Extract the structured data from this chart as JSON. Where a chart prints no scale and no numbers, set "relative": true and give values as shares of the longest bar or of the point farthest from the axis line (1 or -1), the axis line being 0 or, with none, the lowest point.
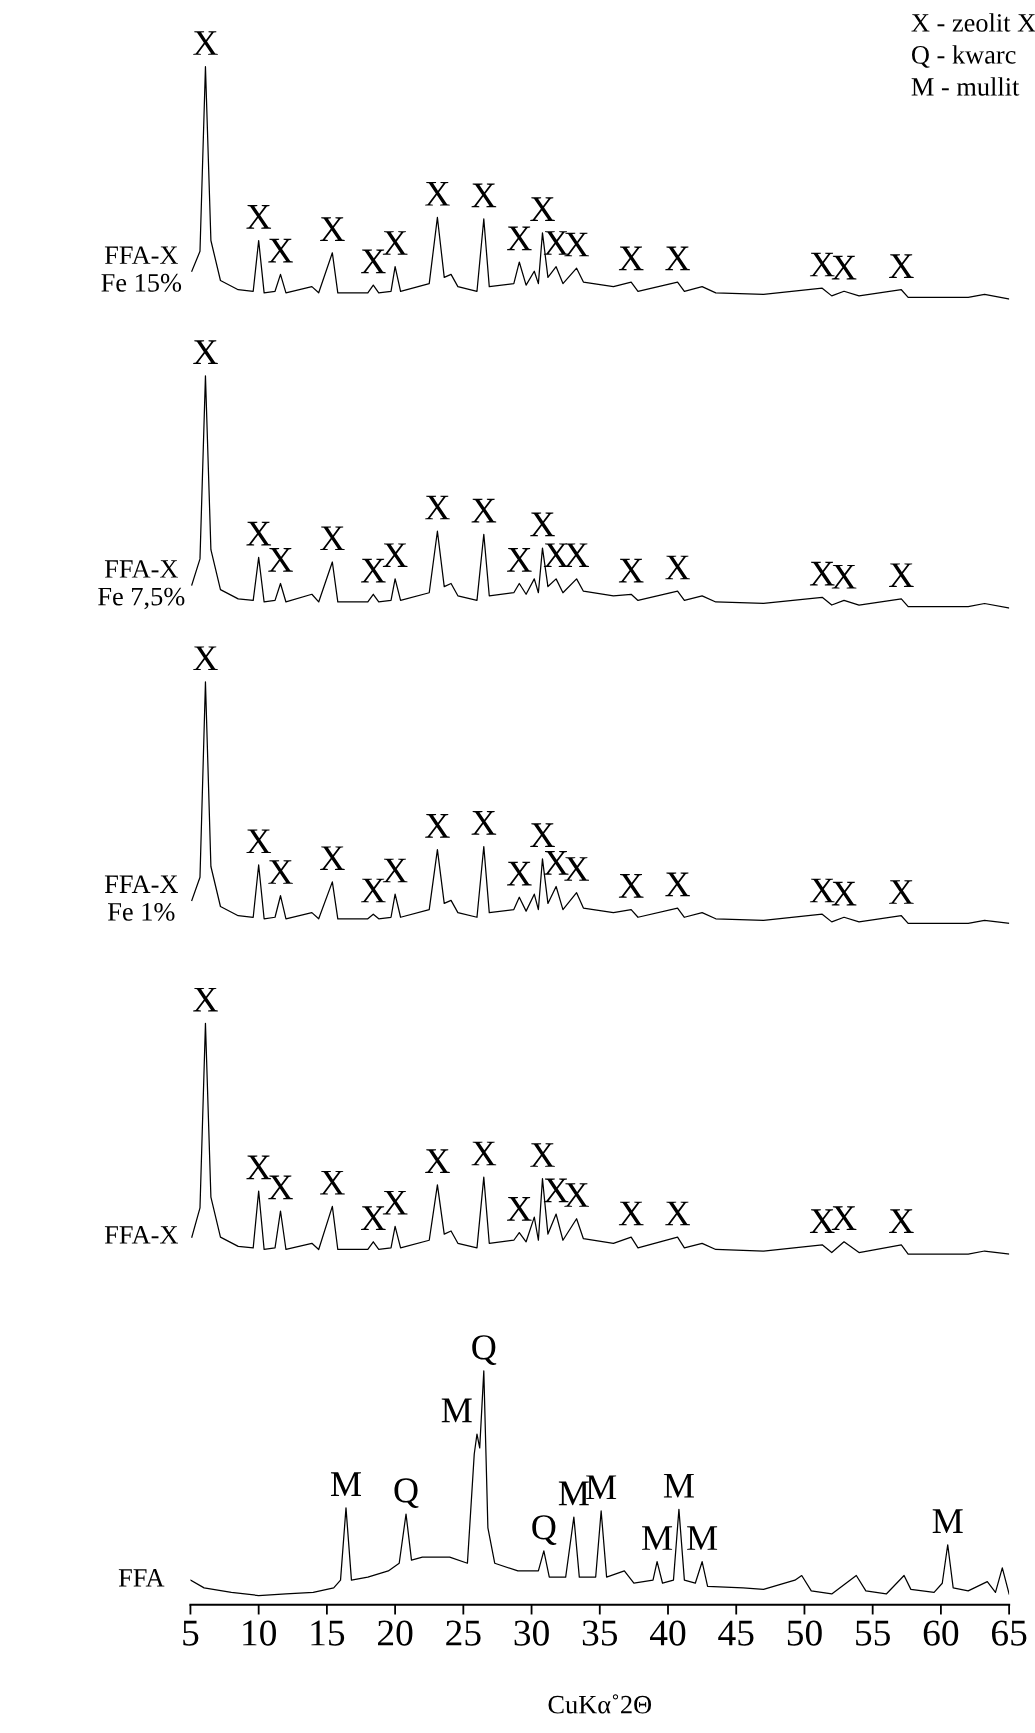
{
  "chart_data": {
    "type": "line",
    "relative": true,
    "xlabel": "CuKα˚2Θ",
    "xlim": [
      5,
      65
    ],
    "xticks": [
      5,
      10,
      15,
      20,
      25,
      30,
      35,
      40,
      45,
      50,
      55,
      60,
      65
    ],
    "tick_labels": "x",
    "series": [
      {
        "name": "FFA-X\nFe 15%",
        "color": "#000000",
        "x": [
          5.1,
          5.7,
          6.1,
          6.5,
          7.2,
          8.5,
          9.6,
          10.0,
          10.4,
          11.2,
          11.6,
          12.0,
          13.9,
          14.4,
          15.4,
          15.8,
          18.0,
          18.4,
          18.8,
          19.7,
          20.0,
          20.4,
          22.5,
          23.1,
          23.6,
          24.1,
          24.6,
          26.0,
          26.5,
          26.9,
          28.7,
          29.1,
          29.6,
          30.2,
          30.5,
          30.8,
          31.2,
          31.8,
          32.3,
          33.3,
          33.8,
          36.0,
          37.3,
          37.8,
          40.7,
          41.2,
          42.5,
          43.5,
          47.0,
          51.3,
          52.0,
          52.9,
          54.0,
          57.1,
          57.6,
          62.0,
          63.2,
          65.0
        ],
        "values": [
          0.867,
          0.88,
          1.0,
          0.887,
          0.861,
          0.855,
          0.854,
          0.887,
          0.853,
          0.854,
          0.865,
          0.853,
          0.857,
          0.853,
          0.879,
          0.853,
          0.853,
          0.858,
          0.853,
          0.854,
          0.87,
          0.854,
          0.859,
          0.902,
          0.863,
          0.865,
          0.857,
          0.854,
          0.901,
          0.857,
          0.859,
          0.873,
          0.858,
          0.867,
          0.859,
          0.892,
          0.863,
          0.87,
          0.859,
          0.869,
          0.86,
          0.857,
          0.86,
          0.854,
          0.86,
          0.854,
          0.857,
          0.853,
          0.852,
          0.856,
          0.851,
          0.854,
          0.851,
          0.855,
          0.85,
          0.85,
          0.852,
          0.849
        ]
      },
      {
        "name": "FFA-X\nFe 7,5%",
        "color": "#000000",
        "x": [
          5.1,
          5.7,
          6.1,
          6.5,
          7.2,
          8.5,
          9.6,
          10.0,
          10.4,
          11.2,
          11.6,
          12.0,
          13.9,
          14.4,
          15.4,
          15.8,
          18.0,
          18.4,
          18.8,
          19.7,
          20.0,
          20.4,
          22.5,
          23.1,
          23.6,
          24.1,
          24.6,
          26.0,
          26.5,
          26.9,
          28.7,
          29.1,
          29.6,
          30.2,
          30.5,
          30.8,
          31.2,
          31.8,
          32.3,
          33.3,
          33.8,
          36.0,
          37.3,
          37.8,
          40.7,
          41.2,
          42.5,
          43.5,
          47.0,
          51.3,
          52.0,
          52.9,
          54.0,
          57.1,
          57.6,
          62.0,
          63.2,
          65.0
        ],
        "values": [
          0.663,
          0.68,
          0.799,
          0.686,
          0.66,
          0.654,
          0.653,
          0.681,
          0.652,
          0.653,
          0.664,
          0.652,
          0.657,
          0.652,
          0.678,
          0.652,
          0.652,
          0.657,
          0.652,
          0.653,
          0.667,
          0.653,
          0.658,
          0.698,
          0.662,
          0.664,
          0.656,
          0.653,
          0.696,
          0.656,
          0.658,
          0.664,
          0.657,
          0.667,
          0.658,
          0.687,
          0.662,
          0.667,
          0.658,
          0.667,
          0.659,
          0.656,
          0.657,
          0.653,
          0.659,
          0.653,
          0.656,
          0.652,
          0.651,
          0.655,
          0.65,
          0.653,
          0.65,
          0.654,
          0.649,
          0.649,
          0.651,
          0.648
        ]
      },
      {
        "name": "FFA-X\nFe 1%",
        "color": "#000000",
        "x": [
          5.1,
          5.7,
          6.1,
          6.5,
          7.2,
          8.5,
          9.6,
          10.0,
          10.4,
          11.2,
          11.6,
          12.0,
          13.9,
          14.4,
          15.4,
          15.8,
          18.0,
          18.4,
          18.8,
          19.7,
          20.0,
          20.4,
          22.5,
          23.1,
          23.6,
          24.1,
          24.6,
          26.0,
          26.5,
          26.9,
          28.7,
          29.1,
          29.6,
          30.2,
          30.5,
          30.8,
          31.2,
          31.8,
          32.3,
          33.3,
          33.8,
          36.0,
          37.3,
          37.8,
          40.7,
          41.2,
          42.5,
          43.5,
          47.0,
          51.3,
          52.0,
          52.9,
          54.0,
          57.1,
          57.6,
          62.0,
          63.2,
          65.0
        ],
        "values": [
          0.458,
          0.473,
          0.6,
          0.48,
          0.454,
          0.448,
          0.447,
          0.481,
          0.446,
          0.447,
          0.461,
          0.446,
          0.45,
          0.446,
          0.47,
          0.446,
          0.446,
          0.449,
          0.446,
          0.447,
          0.462,
          0.447,
          0.452,
          0.491,
          0.456,
          0.458,
          0.45,
          0.447,
          0.493,
          0.45,
          0.452,
          0.46,
          0.451,
          0.462,
          0.452,
          0.485,
          0.456,
          0.467,
          0.452,
          0.463,
          0.453,
          0.45,
          0.452,
          0.447,
          0.453,
          0.447,
          0.45,
          0.446,
          0.445,
          0.449,
          0.444,
          0.447,
          0.444,
          0.448,
          0.443,
          0.443,
          0.445,
          0.443
        ]
      },
      {
        "name": "FFA-X",
        "color": "#000000",
        "x": [
          5.1,
          5.7,
          6.1,
          6.5,
          7.2,
          8.5,
          9.6,
          10.0,
          10.4,
          11.2,
          11.6,
          12.0,
          13.9,
          14.4,
          15.4,
          15.8,
          18.0,
          18.4,
          18.8,
          19.7,
          20.0,
          20.4,
          22.5,
          23.1,
          23.6,
          24.1,
          24.6,
          26.0,
          26.5,
          26.9,
          28.7,
          29.1,
          29.6,
          30.2,
          30.5,
          30.8,
          31.2,
          31.8,
          32.3,
          33.3,
          33.8,
          36.0,
          37.3,
          37.8,
          40.7,
          41.2,
          42.5,
          43.5,
          47.0,
          51.3,
          52.0,
          52.9,
          54.0,
          57.1,
          57.6,
          62.0,
          63.2,
          65.0
        ],
        "values": [
          0.239,
          0.258,
          0.378,
          0.265,
          0.239,
          0.233,
          0.232,
          0.269,
          0.231,
          0.232,
          0.256,
          0.231,
          0.235,
          0.231,
          0.259,
          0.231,
          0.231,
          0.236,
          0.231,
          0.232,
          0.246,
          0.232,
          0.237,
          0.273,
          0.241,
          0.243,
          0.235,
          0.232,
          0.278,
          0.235,
          0.237,
          0.242,
          0.236,
          0.252,
          0.237,
          0.277,
          0.241,
          0.254,
          0.237,
          0.251,
          0.238,
          0.235,
          0.239,
          0.232,
          0.239,
          0.232,
          0.235,
          0.231,
          0.23,
          0.234,
          0.229,
          0.236,
          0.229,
          0.234,
          0.228,
          0.228,
          0.23,
          0.228
        ]
      },
      {
        "name": "FFA",
        "color": "#000000",
        "x": [
          5.0,
          6.0,
          8.0,
          10.0,
          12.0,
          14.0,
          15.5,
          16.0,
          16.4,
          16.8,
          18.0,
          19.5,
          20.3,
          20.8,
          21.2,
          22.0,
          24.0,
          25.3,
          25.8,
          26.0,
          26.2,
          26.5,
          26.8,
          27.3,
          29.0,
          30.5,
          30.9,
          31.3,
          32.5,
          33.1,
          33.5,
          34.7,
          35.1,
          35.5,
          36.8,
          37.5,
          38.9,
          39.2,
          39.6,
          40.4,
          40.8,
          41.2,
          42.0,
          42.5,
          42.9,
          45.5,
          47.0,
          49.3,
          49.8,
          50.5,
          52.0,
          53.8,
          54.5,
          56.0,
          57.3,
          57.8,
          59.5,
          60.1,
          60.5,
          60.9,
          62.0,
          63.4,
          64.0,
          64.5,
          65.0
        ],
        "values": [
          0.016,
          0.011,
          0.008,
          0.006,
          0.007,
          0.008,
          0.011,
          0.016,
          0.063,
          0.016,
          0.018,
          0.022,
          0.027,
          0.059,
          0.029,
          0.031,
          0.031,
          0.027,
          0.098,
          0.111,
          0.102,
          0.152,
          0.05,
          0.027,
          0.022,
          0.022,
          0.035,
          0.018,
          0.018,
          0.057,
          0.018,
          0.018,
          0.061,
          0.018,
          0.022,
          0.014,
          0.016,
          0.028,
          0.014,
          0.016,
          0.062,
          0.016,
          0.014,
          0.028,
          0.012,
          0.011,
          0.01,
          0.016,
          0.019,
          0.009,
          0.007,
          0.019,
          0.009,
          0.007,
          0.019,
          0.01,
          0.008,
          0.014,
          0.039,
          0.011,
          0.009,
          0.015,
          0.008,
          0.024,
          0.007
        ]
      }
    ],
    "annotations": [
      "X - zeolit X",
      "Q - kwarc",
      "M - mullit",
      {
        "text": "X",
        "x": 6.1,
        "y": 1.0
      },
      {
        "text": "X",
        "x": 10.0,
        "y": 0.887
      },
      {
        "text": "X",
        "x": 11.6,
        "y": 0.865
      },
      {
        "text": "X",
        "x": 15.4,
        "y": 0.879
      },
      {
        "text": "X",
        "x": 18.4,
        "y": 0.858
      },
      {
        "text": "X",
        "x": 20.0,
        "y": 0.87
      },
      {
        "text": "X",
        "x": 23.1,
        "y": 0.902
      },
      {
        "text": "X",
        "x": 26.5,
        "y": 0.901
      },
      {
        "text": "X",
        "x": 29.1,
        "y": 0.873
      },
      {
        "text": "X",
        "x": 30.8,
        "y": 0.892
      },
      {
        "text": "X",
        "x": 31.8,
        "y": 0.87
      },
      {
        "text": "X",
        "x": 33.3,
        "y": 0.869
      },
      {
        "text": "X",
        "x": 37.3,
        "y": 0.86
      },
      {
        "text": "X",
        "x": 40.7,
        "y": 0.86
      },
      {
        "text": "X",
        "x": 51.3,
        "y": 0.856
      },
      {
        "text": "X",
        "x": 52.9,
        "y": 0.854
      },
      {
        "text": "X",
        "x": 57.1,
        "y": 0.855
      },
      {
        "text": "X",
        "x": 6.1,
        "y": 0.799
      },
      {
        "text": "X",
        "x": 10.0,
        "y": 0.681
      },
      {
        "text": "X",
        "x": 11.6,
        "y": 0.664
      },
      {
        "text": "X",
        "x": 15.4,
        "y": 0.678
      },
      {
        "text": "X",
        "x": 18.4,
        "y": 0.657
      },
      {
        "text": "X",
        "x": 20.0,
        "y": 0.667
      },
      {
        "text": "X",
        "x": 23.1,
        "y": 0.698
      },
      {
        "text": "X",
        "x": 26.5,
        "y": 0.696
      },
      {
        "text": "X",
        "x": 29.1,
        "y": 0.664
      },
      {
        "text": "X",
        "x": 30.8,
        "y": 0.687
      },
      {
        "text": "X",
        "x": 31.8,
        "y": 0.667
      },
      {
        "text": "X",
        "x": 33.3,
        "y": 0.667
      },
      {
        "text": "X",
        "x": 37.3,
        "y": 0.657
      },
      {
        "text": "X",
        "x": 40.7,
        "y": 0.659
      },
      {
        "text": "X",
        "x": 51.3,
        "y": 0.655
      },
      {
        "text": "X",
        "x": 52.9,
        "y": 0.653
      },
      {
        "text": "X",
        "x": 57.1,
        "y": 0.654
      },
      {
        "text": "X",
        "x": 6.1,
        "y": 0.6
      },
      {
        "text": "X",
        "x": 10.0,
        "y": 0.481
      },
      {
        "text": "X",
        "x": 11.6,
        "y": 0.461
      },
      {
        "text": "X",
        "x": 15.4,
        "y": 0.47
      },
      {
        "text": "X",
        "x": 18.4,
        "y": 0.449
      },
      {
        "text": "X",
        "x": 20.0,
        "y": 0.462
      },
      {
        "text": "X",
        "x": 23.1,
        "y": 0.491
      },
      {
        "text": "X",
        "x": 26.5,
        "y": 0.493
      },
      {
        "text": "X",
        "x": 29.1,
        "y": 0.46
      },
      {
        "text": "X",
        "x": 30.8,
        "y": 0.485
      },
      {
        "text": "X",
        "x": 31.8,
        "y": 0.467
      },
      {
        "text": "X",
        "x": 33.3,
        "y": 0.463
      },
      {
        "text": "X",
        "x": 37.3,
        "y": 0.452
      },
      {
        "text": "X",
        "x": 40.7,
        "y": 0.453
      },
      {
        "text": "X",
        "x": 51.3,
        "y": 0.449
      },
      {
        "text": "X",
        "x": 52.9,
        "y": 0.447
      },
      {
        "text": "X",
        "x": 57.1,
        "y": 0.448
      },
      {
        "text": "X",
        "x": 6.1,
        "y": 0.378
      },
      {
        "text": "X",
        "x": 10.0,
        "y": 0.269
      },
      {
        "text": "X",
        "x": 11.6,
        "y": 0.256
      },
      {
        "text": "X",
        "x": 15.4,
        "y": 0.259
      },
      {
        "text": "X",
        "x": 18.4,
        "y": 0.236
      },
      {
        "text": "X",
        "x": 20.0,
        "y": 0.246
      },
      {
        "text": "X",
        "x": 23.1,
        "y": 0.273
      },
      {
        "text": "X",
        "x": 26.5,
        "y": 0.278
      },
      {
        "text": "X",
        "x": 29.1,
        "y": 0.242
      },
      {
        "text": "X",
        "x": 30.8,
        "y": 0.277
      },
      {
        "text": "X",
        "x": 31.8,
        "y": 0.254
      },
      {
        "text": "X",
        "x": 33.3,
        "y": 0.251
      },
      {
        "text": "X",
        "x": 37.3,
        "y": 0.239
      },
      {
        "text": "X",
        "x": 40.7,
        "y": 0.239
      },
      {
        "text": "X",
        "x": 51.3,
        "y": 0.234
      },
      {
        "text": "X",
        "x": 52.9,
        "y": 0.236
      },
      {
        "text": "X",
        "x": 57.1,
        "y": 0.234
      },
      {
        "text": "M",
        "x": 16.4,
        "y": 0.063
      },
      {
        "text": "Q",
        "x": 20.8,
        "y": 0.059
      },
      {
        "text": "M",
        "x": 26.0,
        "y": 0.111
      },
      {
        "text": "Q",
        "x": 26.5,
        "y": 0.152
      },
      {
        "text": "Q",
        "x": 30.9,
        "y": 0.035
      },
      {
        "text": "M",
        "x": 33.1,
        "y": 0.057
      },
      {
        "text": "M",
        "x": 35.1,
        "y": 0.061
      },
      {
        "text": "M",
        "x": 39.2,
        "y": 0.028
      },
      {
        "text": "M",
        "x": 40.8,
        "y": 0.062
      },
      {
        "text": "M",
        "x": 42.5,
        "y": 0.028
      },
      {
        "text": "M",
        "x": 60.5,
        "y": 0.039
      }
    ]
  }
}
